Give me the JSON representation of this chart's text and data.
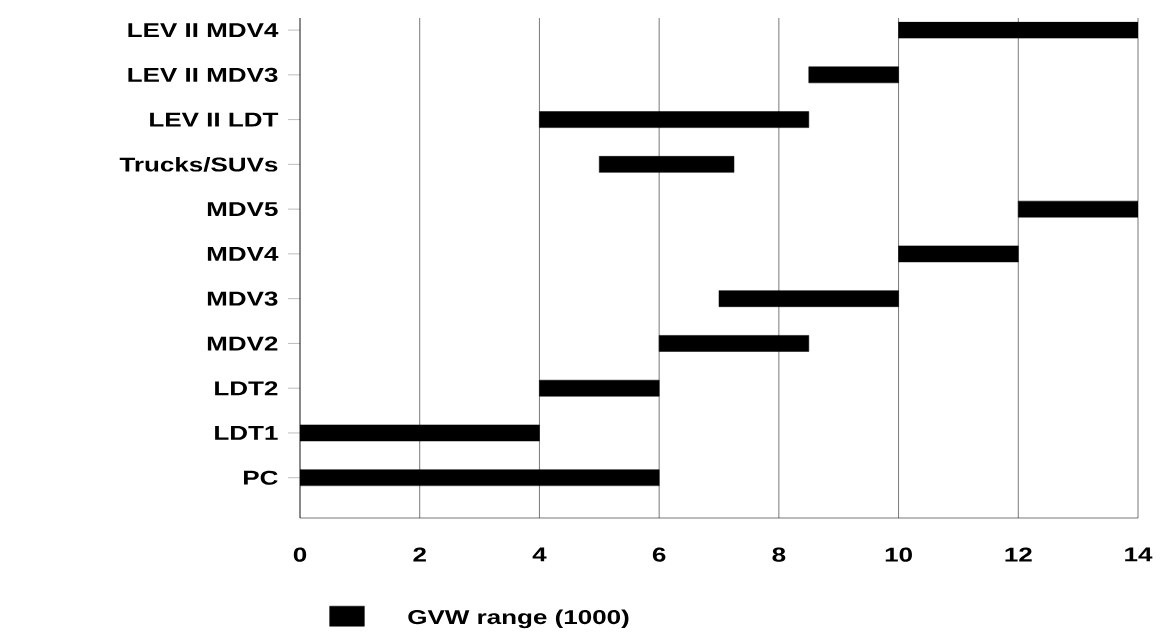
{
  "chart_data": {
    "type": "bar",
    "orientation": "horizontal",
    "categories": [
      "LEV II MDV4",
      "LEV II MDV3",
      "LEV II LDT",
      "Trucks/SUVs",
      "MDV5",
      "MDV4",
      "MDV3",
      "MDV2",
      "LDT2",
      "LDT1",
      "PC"
    ],
    "series": [
      {
        "name": "GVW range (1000)",
        "color": "#000000",
        "base": [
          10,
          8.5,
          4,
          5,
          12,
          10,
          7,
          6,
          4,
          0,
          0
        ],
        "values": [
          4,
          1.5,
          4.5,
          2.25,
          2,
          2,
          3,
          2.5,
          2,
          4,
          6
        ]
      }
    ],
    "xlim": [
      0,
      14
    ],
    "xticks": [
      0,
      2,
      4,
      6,
      8,
      10,
      12,
      14
    ],
    "grid": "x",
    "legend": "bottom"
  }
}
